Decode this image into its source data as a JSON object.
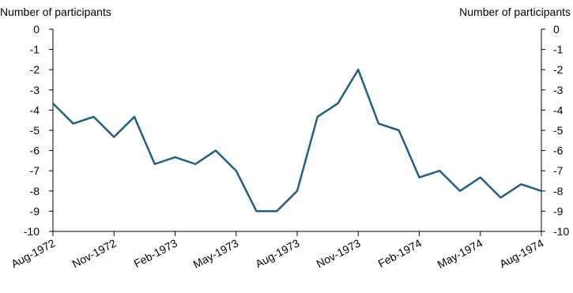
{
  "chart_data": {
    "type": "line",
    "y_label": "Number of participants",
    "y2_label": "Number of participants",
    "categories": [
      "Aug-1972",
      null,
      null,
      "Nov-1972",
      null,
      null,
      "Feb-1973",
      null,
      null,
      "May-1973",
      null,
      null,
      "Aug-1973",
      null,
      null,
      "Nov-1973",
      null,
      null,
      "Feb-1974",
      null,
      null,
      "May-1974",
      null,
      null,
      "Aug-1974"
    ],
    "series": [
      {
        "color": "#215f7f",
        "values": [
          -3.67,
          -4.67,
          -4.33,
          -5.33,
          -4.33,
          -6.67,
          -6.33,
          -6.67,
          -6,
          -7,
          -9,
          -9,
          -8,
          -4.33,
          -3.67,
          -2,
          -4.67,
          -5,
          -7.33,
          -7,
          -8,
          -7.33,
          -8.33,
          -7.67,
          -8
        ]
      }
    ],
    "ylim": [
      -10,
      0
    ],
    "yticks": [
      0,
      -1,
      -2,
      -3,
      -4,
      -5,
      -6,
      -7,
      -8,
      -9,
      -10
    ],
    "y2lim": [
      -10,
      0
    ],
    "y2ticks": [
      0,
      -1,
      -2,
      -3,
      -4,
      -5,
      -6,
      -7,
      -8,
      -9,
      -10
    ]
  }
}
